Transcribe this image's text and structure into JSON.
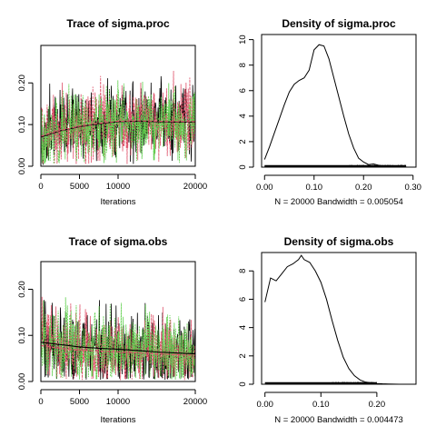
{
  "chart_data": [
    {
      "type": "line",
      "title": "Trace of sigma.proc",
      "xlabel": "Iterations",
      "ylabel": "",
      "xlim": [
        0,
        20000
      ],
      "ylim": [
        0,
        0.29
      ],
      "xticks": [
        0,
        5000,
        10000,
        20000
      ],
      "xtick_labels": [
        "0",
        "5000",
        "10000",
        "20000"
      ],
      "yticks": [
        0.0,
        0.1,
        0.2
      ],
      "ytick_labels": [
        "0.00",
        "0.10",
        "0.20"
      ],
      "series_colors": [
        "#000000",
        "#DF536B",
        "#61D04F"
      ],
      "chain_stats": {
        "mean": 0.105,
        "sd": 0.045,
        "min": 0.005,
        "max": 0.285
      },
      "smooth": {
        "color": "#000000",
        "x": [
          0,
          2500,
          5000,
          7500,
          10000,
          12500,
          15000,
          17500,
          20000
        ],
        "y": [
          0.07,
          0.085,
          0.095,
          0.102,
          0.107,
          0.108,
          0.107,
          0.106,
          0.106
        ]
      },
      "smooth2": {
        "color": "#DF536B",
        "x": [
          0,
          2500,
          5000,
          7500,
          10000,
          12500,
          15000,
          17500,
          20000
        ],
        "y": [
          0.072,
          0.086,
          0.096,
          0.103,
          0.108,
          0.109,
          0.108,
          0.107,
          0.107
        ]
      }
    },
    {
      "type": "line",
      "title": "Density of sigma.proc",
      "xlabel": "N = 20000   Bandwidth = 0.005054",
      "ylabel": "",
      "xlim": [
        -0.006,
        0.306
      ],
      "ylim": [
        0,
        10.4
      ],
      "xticks": [
        0.0,
        0.1,
        0.2,
        0.3
      ],
      "xtick_labels": [
        "0.00",
        "0.10",
        "0.20",
        "0.30"
      ],
      "yticks": [
        0,
        2,
        4,
        6,
        8,
        10
      ],
      "ytick_labels": [
        "0",
        "2",
        "4",
        "6",
        "8",
        "10"
      ],
      "x": [
        0.0,
        0.01,
        0.02,
        0.03,
        0.04,
        0.05,
        0.06,
        0.07,
        0.08,
        0.09,
        0.1,
        0.11,
        0.12,
        0.13,
        0.14,
        0.15,
        0.16,
        0.17,
        0.18,
        0.19,
        0.2,
        0.21,
        0.22,
        0.23,
        0.24,
        0.25,
        0.27,
        0.29
      ],
      "y": [
        0.6,
        1.6,
        2.7,
        3.8,
        4.9,
        5.9,
        6.5,
        6.8,
        7.0,
        7.6,
        9.2,
        9.6,
        9.5,
        8.5,
        7.0,
        5.5,
        4.0,
        2.6,
        1.5,
        0.7,
        0.4,
        0.2,
        0.25,
        0.15,
        0.1,
        0.05,
        0.02,
        0.0
      ],
      "rug": {
        "from": 0.0,
        "to": 0.286
      }
    },
    {
      "type": "line",
      "title": "Trace of sigma.obs",
      "xlabel": "Iterations",
      "ylabel": "",
      "xlim": [
        0,
        20000
      ],
      "ylim": [
        0,
        0.26
      ],
      "xticks": [
        0,
        5000,
        10000,
        20000
      ],
      "xtick_labels": [
        "0",
        "5000",
        "10000",
        "20000"
      ],
      "yticks": [
        0.0,
        0.1,
        0.2
      ],
      "ytick_labels": [
        "0.00",
        "0.10",
        "0.20"
      ],
      "series_colors": [
        "#000000",
        "#DF536B",
        "#61D04F"
      ],
      "chain_stats": {
        "mean": 0.07,
        "sd": 0.04,
        "min": 0.003,
        "max": 0.26
      },
      "smooth": {
        "color": "#000000",
        "x": [
          0,
          2500,
          5000,
          7500,
          10000,
          12500,
          15000,
          17500,
          20000
        ],
        "y": [
          0.085,
          0.08,
          0.075,
          0.072,
          0.07,
          0.067,
          0.064,
          0.062,
          0.06
        ]
      },
      "smooth2": {
        "color": "#DF536B",
        "x": [
          0,
          2500,
          5000,
          7500,
          10000,
          12500,
          15000,
          17500,
          20000
        ],
        "y": [
          0.078,
          0.072,
          0.068,
          0.066,
          0.064,
          0.062,
          0.06,
          0.058,
          0.057
        ]
      }
    },
    {
      "type": "line",
      "title": "Density of sigma.obs",
      "xlabel": "N = 20000   Bandwidth = 0.004473",
      "ylabel": "",
      "xlim": [
        -0.006,
        0.27
      ],
      "ylim": [
        0,
        9.3
      ],
      "xticks": [
        0.0,
        0.1,
        0.2
      ],
      "xtick_labels": [
        "0.00",
        "0.10",
        "0.20"
      ],
      "yticks": [
        0,
        2,
        4,
        6,
        8
      ],
      "ytick_labels": [
        "0",
        "2",
        "4",
        "6",
        "8"
      ],
      "x": [
        0.0,
        0.01,
        0.02,
        0.03,
        0.04,
        0.05,
        0.06,
        0.065,
        0.07,
        0.08,
        0.09,
        0.1,
        0.11,
        0.12,
        0.13,
        0.14,
        0.15,
        0.16,
        0.17,
        0.18,
        0.19,
        0.2,
        0.21,
        0.22,
        0.24
      ],
      "y": [
        5.8,
        7.5,
        7.3,
        7.8,
        8.3,
        8.5,
        8.8,
        9.1,
        8.8,
        8.6,
        8.0,
        7.2,
        6.0,
        4.5,
        3.1,
        1.9,
        1.1,
        0.6,
        0.3,
        0.15,
        0.1,
        0.05,
        0.03,
        0.02,
        0.0
      ],
      "rug": {
        "from": 0.0,
        "to": 0.2
      }
    }
  ]
}
